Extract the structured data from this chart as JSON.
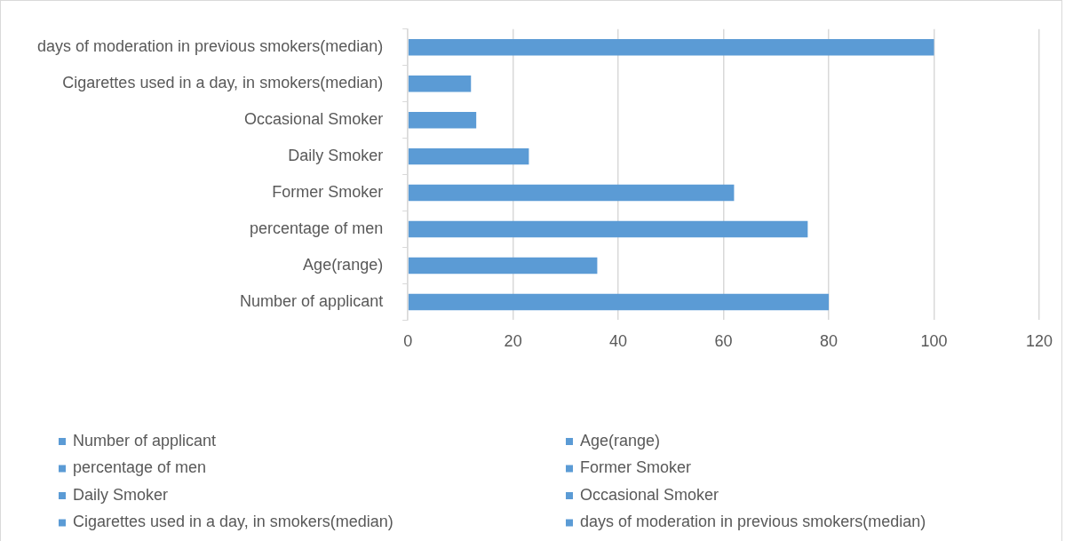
{
  "chart_data": {
    "type": "bar",
    "orientation": "horizontal",
    "stacked": true,
    "categories": [
      "days of moderation in previous smokers(median)",
      "Cigarettes used in a day, in smokers(median)",
      "Occasional Smoker",
      "Daily Smoker",
      "Former Smoker",
      "percentage of men",
      "Age(range)",
      "Number of applicant"
    ],
    "series": [
      {
        "name": "Number of applicant",
        "color": "#5b9bd5",
        "values": [
          null,
          null,
          null,
          null,
          null,
          null,
          null,
          80
        ]
      },
      {
        "name": "Age(range)",
        "color": "#5b9bd5",
        "values": [
          null,
          null,
          null,
          null,
          null,
          null,
          36,
          null
        ]
      },
      {
        "name": "percentage of men",
        "color": "#5b9bd5",
        "values": [
          null,
          null,
          null,
          null,
          null,
          76,
          null,
          null
        ]
      },
      {
        "name": "Former Smoker",
        "color": "#5b9bd5",
        "values": [
          null,
          null,
          null,
          null,
          62,
          null,
          null,
          null
        ]
      },
      {
        "name": "Daily Smoker",
        "color": "#5b9bd5",
        "values": [
          null,
          null,
          null,
          23,
          null,
          null,
          null,
          null
        ]
      },
      {
        "name": "Occasional Smoker",
        "color": "#5b9bd5",
        "values": [
          null,
          null,
          13,
          null,
          null,
          null,
          null,
          null
        ]
      },
      {
        "name": "Cigarettes used in a day, in smokers(median)",
        "color": "#5b9bd5",
        "values": [
          null,
          12,
          null,
          null,
          null,
          null,
          null,
          null
        ]
      },
      {
        "name": "days of moderation in previous smokers(median)",
        "color": "#5b9bd5",
        "values": [
          100,
          null,
          null,
          null,
          null,
          null,
          null,
          null
        ]
      }
    ],
    "xlim": [
      0,
      120
    ],
    "xticks": [
      0,
      20,
      40,
      60,
      80,
      100,
      120
    ],
    "grid": "x",
    "legend": "bottom"
  }
}
